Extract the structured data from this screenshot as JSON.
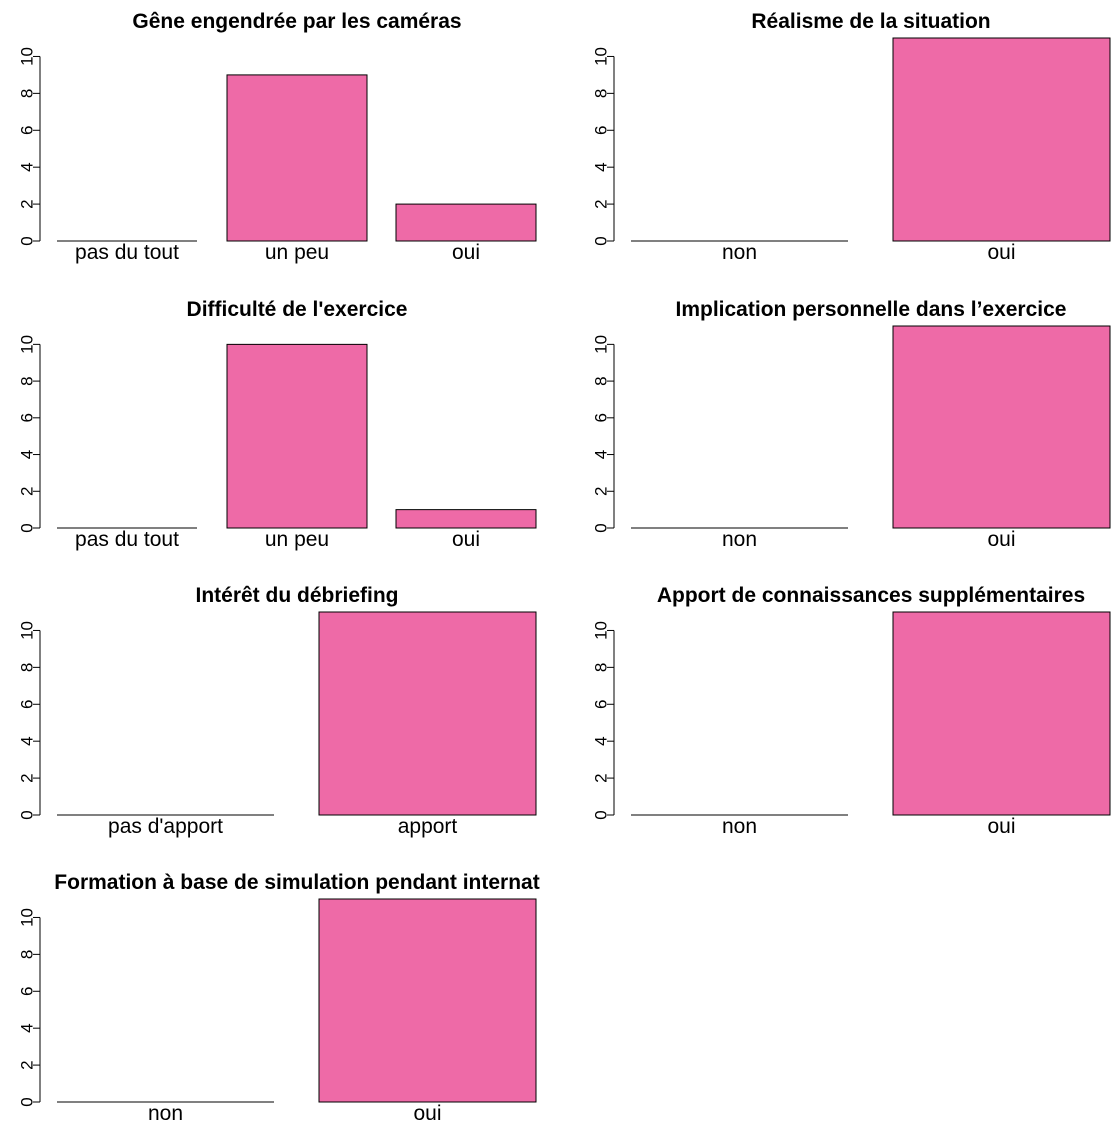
{
  "bar_color": "#ee6aa7",
  "chart_data": [
    {
      "type": "bar",
      "title": "Gêne engendrée par les caméras",
      "categories": [
        "pas du tout",
        "un peu",
        "oui"
      ],
      "values": [
        0,
        9,
        2
      ],
      "yticks": [
        "0",
        "2",
        "4",
        "6",
        "8",
        "10"
      ],
      "ylim": [
        0,
        11
      ]
    },
    {
      "type": "bar",
      "title": "Réalisme de la situation",
      "categories": [
        "non",
        "oui"
      ],
      "values": [
        0,
        11
      ],
      "yticks": [
        "0",
        "2",
        "4",
        "6",
        "8",
        "10"
      ],
      "ylim": [
        0,
        11
      ]
    },
    {
      "type": "bar",
      "title": "Difficulté de l'exercice",
      "categories": [
        "pas du tout",
        "un peu",
        "oui"
      ],
      "values": [
        0,
        10,
        1
      ],
      "yticks": [
        "0",
        "2",
        "4",
        "6",
        "8",
        "10"
      ],
      "ylim": [
        0,
        11
      ]
    },
    {
      "type": "bar",
      "title": "Implication personnelle dans l’exercice",
      "categories": [
        "non",
        "oui"
      ],
      "values": [
        0,
        11
      ],
      "yticks": [
        "0",
        "2",
        "4",
        "6",
        "8",
        "10"
      ],
      "ylim": [
        0,
        11
      ]
    },
    {
      "type": "bar",
      "title": "Intérêt du débriefing",
      "categories": [
        "pas d'apport",
        "apport"
      ],
      "values": [
        0,
        11
      ],
      "yticks": [
        "0",
        "2",
        "4",
        "6",
        "8",
        "10"
      ],
      "ylim": [
        0,
        11
      ]
    },
    {
      "type": "bar",
      "title": "Apport de connaissances supplémentaires",
      "categories": [
        "non",
        "oui"
      ],
      "values": [
        0,
        11
      ],
      "yticks": [
        "0",
        "2",
        "4",
        "6",
        "8",
        "10"
      ],
      "ylim": [
        0,
        11
      ]
    },
    {
      "type": "bar",
      "title": "Formation à base de simulation pendant internat",
      "categories": [
        "non",
        "oui"
      ],
      "values": [
        0,
        11
      ],
      "yticks": [
        "0",
        "2",
        "4",
        "6",
        "8",
        "10"
      ],
      "ylim": [
        0,
        11
      ]
    }
  ]
}
